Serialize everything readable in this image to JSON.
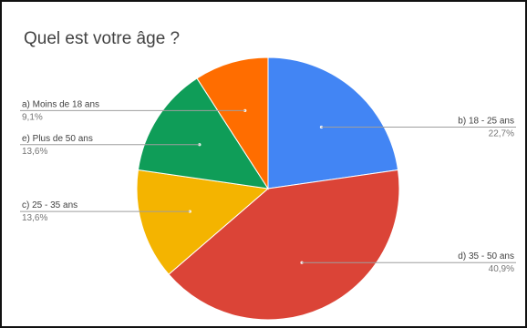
{
  "chart_data": {
    "type": "pie",
    "title": "Quel est votre âge ?",
    "start_angle_deg": 0,
    "direction": "clockwise",
    "slices": [
      {
        "label": "b) 18 - 25 ans",
        "value": 22.7,
        "display": "22,7%",
        "color": "#4285F4"
      },
      {
        "label": "d) 35 - 50 ans",
        "value": 40.9,
        "display": "40,9%",
        "color": "#DB4437"
      },
      {
        "label": "c) 25 - 35 ans",
        "value": 13.6,
        "display": "13,6%",
        "color": "#F4B400"
      },
      {
        "label": "e) Plus de 50 ans",
        "value": 13.6,
        "display": "13,6%",
        "color": "#0F9D58"
      },
      {
        "label": "a) Moins de 18 ans",
        "value": 9.1,
        "display": "9,1%",
        "color": "#FF6D00"
      }
    ],
    "legend": "none",
    "label_style": "callouts"
  }
}
